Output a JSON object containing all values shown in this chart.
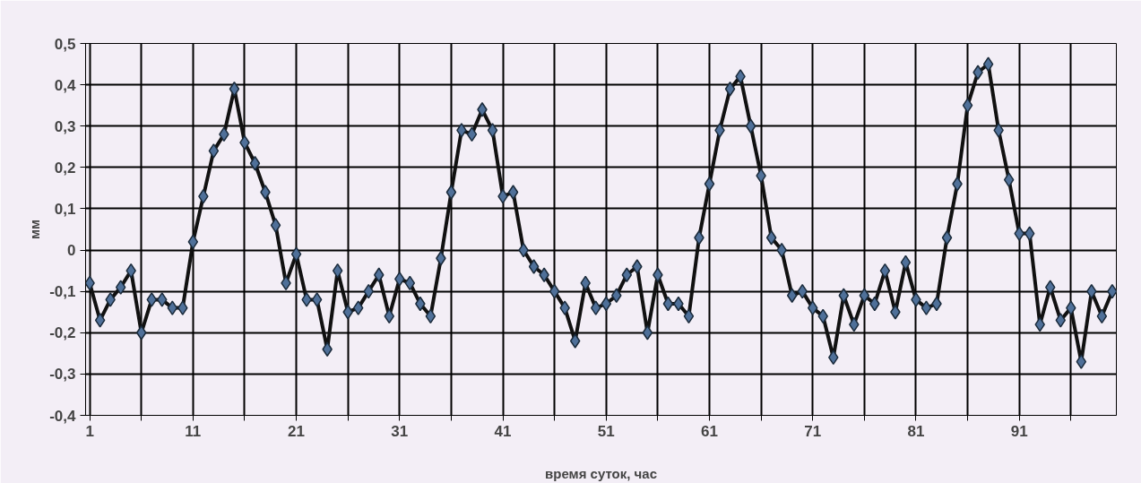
{
  "chart_data": {
    "type": "line",
    "xlabel": "время суток, час",
    "ylabel": "мм",
    "x": [
      1,
      2,
      3,
      4,
      5,
      6,
      7,
      8,
      9,
      10,
      11,
      12,
      13,
      14,
      15,
      16,
      17,
      18,
      19,
      20,
      21,
      22,
      23,
      24,
      25,
      26,
      27,
      28,
      29,
      30,
      31,
      32,
      33,
      34,
      35,
      36,
      37,
      38,
      39,
      40,
      41,
      42,
      43,
      44,
      45,
      46,
      47,
      48,
      49,
      50,
      51,
      52,
      53,
      54,
      55,
      56,
      57,
      58,
      59,
      60,
      61,
      62,
      63,
      64,
      65,
      66,
      67,
      68,
      69,
      70,
      71,
      72,
      73,
      74,
      75,
      76,
      77,
      78,
      79,
      80,
      81,
      82,
      83,
      84,
      85,
      86,
      87,
      88,
      89,
      90,
      91,
      92,
      93,
      94,
      95,
      96,
      97,
      98,
      99,
      100
    ],
    "series": [
      {
        "color": "#4f7099",
        "values": [
          -0.08,
          -0.17,
          -0.12,
          -0.09,
          -0.05,
          -0.2,
          -0.12,
          -0.12,
          -0.14,
          -0.14,
          0.02,
          0.13,
          0.24,
          0.28,
          0.39,
          0.26,
          0.21,
          0.14,
          0.06,
          -0.08,
          -0.01,
          -0.12,
          -0.12,
          -0.24,
          -0.05,
          -0.15,
          -0.14,
          -0.1,
          -0.06,
          -0.16,
          -0.07,
          -0.08,
          -0.13,
          -0.16,
          -0.02,
          0.14,
          0.29,
          0.28,
          0.34,
          0.29,
          0.13,
          0.14,
          0.0,
          -0.04,
          -0.06,
          -0.1,
          -0.14,
          -0.22,
          -0.08,
          -0.14,
          -0.13,
          -0.11,
          -0.06,
          -0.04,
          -0.2,
          -0.06,
          -0.13,
          -0.13,
          -0.16,
          0.03,
          0.16,
          0.29,
          0.39,
          0.42,
          0.3,
          0.18,
          0.03,
          0.0,
          -0.11,
          -0.1,
          -0.14,
          -0.16,
          -0.26,
          -0.11,
          -0.18,
          -0.11,
          -0.13,
          -0.05,
          -0.15,
          -0.03,
          -0.12,
          -0.14,
          -0.13,
          0.03,
          0.16,
          0.35,
          0.43,
          0.45,
          0.29,
          0.17,
          0.04,
          0.04,
          -0.18,
          -0.09,
          -0.17,
          -0.14,
          -0.27,
          -0.1,
          -0.16,
          -0.1
        ]
      }
    ],
    "xlim": [
      0.6,
      100.4
    ],
    "xticks": [
      {
        "value": 1,
        "label": "1"
      },
      {
        "value": 6,
        "label": null
      },
      {
        "value": 11,
        "label": "11"
      },
      {
        "value": 16,
        "label": null
      },
      {
        "value": 21,
        "label": "21"
      },
      {
        "value": 26,
        "label": null
      },
      {
        "value": 31,
        "label": "31"
      },
      {
        "value": 36,
        "label": null
      },
      {
        "value": 41,
        "label": "41"
      },
      {
        "value": 46,
        "label": null
      },
      {
        "value": 51,
        "label": "51"
      },
      {
        "value": 56,
        "label": null
      },
      {
        "value": 61,
        "label": "61"
      },
      {
        "value": 66,
        "label": null
      },
      {
        "value": 71,
        "label": "71"
      },
      {
        "value": 76,
        "label": null
      },
      {
        "value": 81,
        "label": "81"
      },
      {
        "value": 86,
        "label": null
      },
      {
        "value": 91,
        "label": "91"
      },
      {
        "value": 96,
        "label": null
      }
    ],
    "ylim": [
      -0.4,
      0.5
    ],
    "yticks": [
      {
        "value": -0.4,
        "label": "-0,4"
      },
      {
        "value": -0.3,
        "label": "-0,3"
      },
      {
        "value": -0.2,
        "label": "-0,2"
      },
      {
        "value": -0.1,
        "label": "-0,1"
      },
      {
        "value": 0,
        "label": "0"
      },
      {
        "value": 0.1,
        "label": "0,1"
      },
      {
        "value": 0.2,
        "label": "0,2"
      },
      {
        "value": 0.3,
        "label": "0,3"
      },
      {
        "value": 0.4,
        "label": "0,4"
      },
      {
        "value": 0.5,
        "label": "0,5"
      }
    ],
    "grid": true,
    "marker": "diamond",
    "line_style": "solid"
  }
}
